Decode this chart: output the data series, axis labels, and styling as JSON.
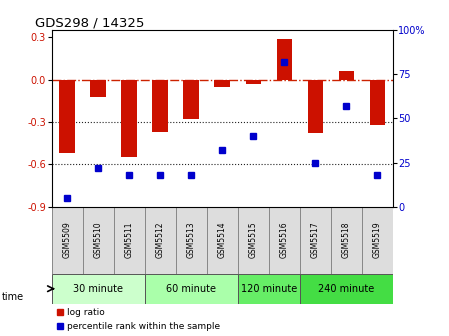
{
  "title": "GDS298 / 14325",
  "samples": [
    "GSM5509",
    "GSM5510",
    "GSM5511",
    "GSM5512",
    "GSM5513",
    "GSM5514",
    "GSM5515",
    "GSM5516",
    "GSM5517",
    "GSM5518",
    "GSM5519"
  ],
  "log_ratio": [
    -0.52,
    -0.12,
    -0.55,
    -0.37,
    -0.28,
    -0.05,
    -0.03,
    0.29,
    -0.38,
    0.06,
    -0.32
  ],
  "percentile": [
    5,
    22,
    18,
    18,
    18,
    32,
    40,
    82,
    25,
    57,
    18
  ],
  "groups": [
    {
      "label": "30 minute",
      "start": 0,
      "end": 3,
      "color": "#ccffcc"
    },
    {
      "label": "60 minute",
      "start": 3,
      "end": 6,
      "color": "#aaffaa"
    },
    {
      "label": "120 minute",
      "start": 6,
      "end": 8,
      "color": "#66ee66"
    },
    {
      "label": "240 minute",
      "start": 8,
      "end": 11,
      "color": "#44dd44"
    }
  ],
  "ylim_left": [
    -0.9,
    0.35
  ],
  "ylim_right": [
    0,
    100
  ],
  "yticks_left": [
    -0.9,
    -0.6,
    -0.3,
    0.0,
    0.3
  ],
  "yticks_right": [
    0,
    25,
    50,
    75,
    100
  ],
  "bar_color": "#cc1100",
  "dot_color": "#0000cc",
  "zero_line_color": "#cc2200",
  "dotted_line_color": "#222222",
  "bg_color": "#ffffff",
  "legend_log_ratio_color": "#cc1100",
  "legend_pct_color": "#0000cc"
}
